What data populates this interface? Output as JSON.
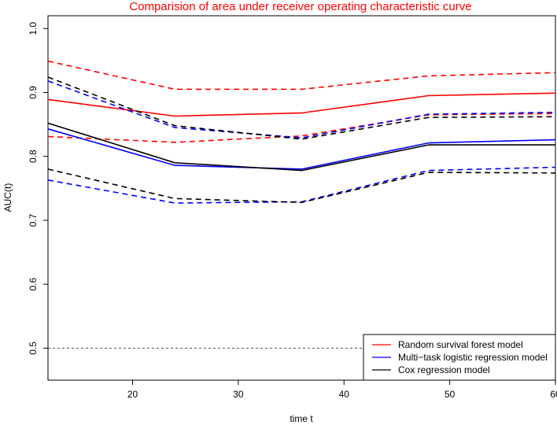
{
  "chart_data": {
    "type": "line",
    "title": "Comparision of area under receiver operating characteristic curve",
    "xlabel": "time t",
    "ylabel": "AUC(t)",
    "xlim": [
      12,
      60
    ],
    "ylim": [
      0.45,
      1.02
    ],
    "x_ticks": [
      20,
      30,
      40,
      50,
      60
    ],
    "y_ticks": [
      0.5,
      0.6,
      0.7,
      0.8,
      0.9,
      1.0
    ],
    "x_tick_labels": [
      "20",
      "30",
      "40",
      "50",
      "60"
    ],
    "y_tick_labels": [
      "0.5",
      "0.6",
      "0.7",
      "0.8",
      "0.9",
      "1.0"
    ],
    "x": [
      12,
      24,
      36,
      48,
      60
    ],
    "reference_line": {
      "y": 0.5,
      "style": "dashed",
      "color": "#555555"
    },
    "series": [
      {
        "name": "Random survival forest model",
        "color": "#ff0000",
        "style": "solid",
        "in_legend": true,
        "values": [
          0.889,
          0.863,
          0.868,
          0.895,
          0.899
        ]
      },
      {
        "name": "Random survival forest model upper CI",
        "color": "#ff0000",
        "style": "dashed",
        "in_legend": false,
        "values": [
          0.949,
          0.905,
          0.905,
          0.926,
          0.931
        ]
      },
      {
        "name": "Random survival forest model lower CI",
        "color": "#ff0000",
        "style": "dashed",
        "in_legend": false,
        "values": [
          0.831,
          0.822,
          0.832,
          0.865,
          0.867
        ]
      },
      {
        "name": "Multi−task logistic regression model",
        "color": "#0000ff",
        "style": "solid",
        "in_legend": true,
        "values": [
          0.843,
          0.786,
          0.78,
          0.821,
          0.826
        ]
      },
      {
        "name": "Multi−task logistic regression model upper CI",
        "color": "#0000ff",
        "style": "dashed",
        "in_legend": false,
        "values": [
          0.918,
          0.845,
          0.829,
          0.866,
          0.869
        ]
      },
      {
        "name": "Multi−task logistic regression model lower CI",
        "color": "#0000ff",
        "style": "dashed",
        "in_legend": false,
        "values": [
          0.763,
          0.727,
          0.729,
          0.778,
          0.783
        ]
      },
      {
        "name": "Cox regression model",
        "color": "#000000",
        "style": "solid",
        "in_legend": true,
        "values": [
          0.852,
          0.79,
          0.778,
          0.818,
          0.818
        ]
      },
      {
        "name": "Cox regression model upper CI",
        "color": "#000000",
        "style": "dashed",
        "in_legend": false,
        "values": [
          0.924,
          0.848,
          0.827,
          0.861,
          0.862
        ]
      },
      {
        "name": "Cox regression model lower CI",
        "color": "#000000",
        "style": "dashed",
        "in_legend": false,
        "values": [
          0.78,
          0.734,
          0.728,
          0.775,
          0.774
        ]
      }
    ],
    "legend": {
      "position": "bottom-right",
      "entries": [
        {
          "label": "Random survival forest model",
          "color": "#ff0000"
        },
        {
          "label": "Multi−task logistic regression model",
          "color": "#0000ff"
        },
        {
          "label": "Cox regression model",
          "color": "#000000"
        }
      ]
    }
  }
}
